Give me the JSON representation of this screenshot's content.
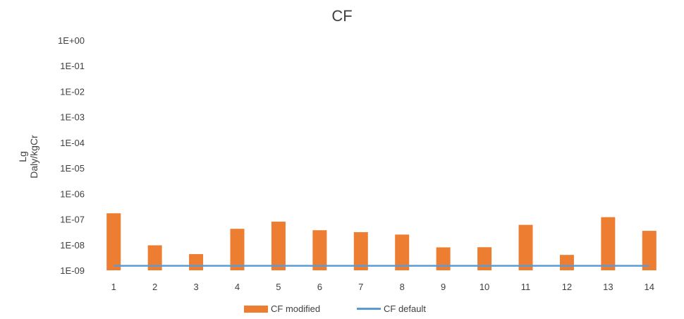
{
  "chart_data": {
    "type": "bar",
    "title": "CF",
    "ylabel_lines": [
      "Lg",
      "Daly/kgCr"
    ],
    "xlabel": "",
    "yscale": "log",
    "ylim": [
      1e-09,
      1
    ],
    "y_tick_labels": [
      "1E+00",
      "1E-01",
      "1E-02",
      "1E-03",
      "1E-04",
      "1E-05",
      "1E-06",
      "1E-07",
      "1E-08",
      "1E-09"
    ],
    "categories": [
      "1",
      "2",
      "3",
      "4",
      "5",
      "6",
      "7",
      "8",
      "9",
      "10",
      "11",
      "12",
      "13",
      "14"
    ],
    "series": [
      {
        "name": "CF modified",
        "kind": "bar",
        "color": "#ed7d31",
        "values": [
          1.7e-07,
          9.5e-09,
          4.3e-09,
          4.2e-08,
          8e-08,
          3.7e-08,
          3.1e-08,
          2.5e-08,
          7.9e-09,
          8e-09,
          6e-08,
          4e-09,
          1.2e-07,
          3.5e-08
        ]
      },
      {
        "name": "CF default",
        "kind": "line",
        "color": "#5b9bd5",
        "values": [
          1.5e-09,
          1.5e-09,
          1.5e-09,
          1.5e-09,
          1.5e-09,
          1.5e-09,
          1.5e-09,
          1.5e-09,
          1.5e-09,
          1.5e-09,
          1.5e-09,
          1.5e-09,
          1.5e-09,
          1.5e-09
        ]
      }
    ],
    "legend": "bottom",
    "grid": false
  }
}
